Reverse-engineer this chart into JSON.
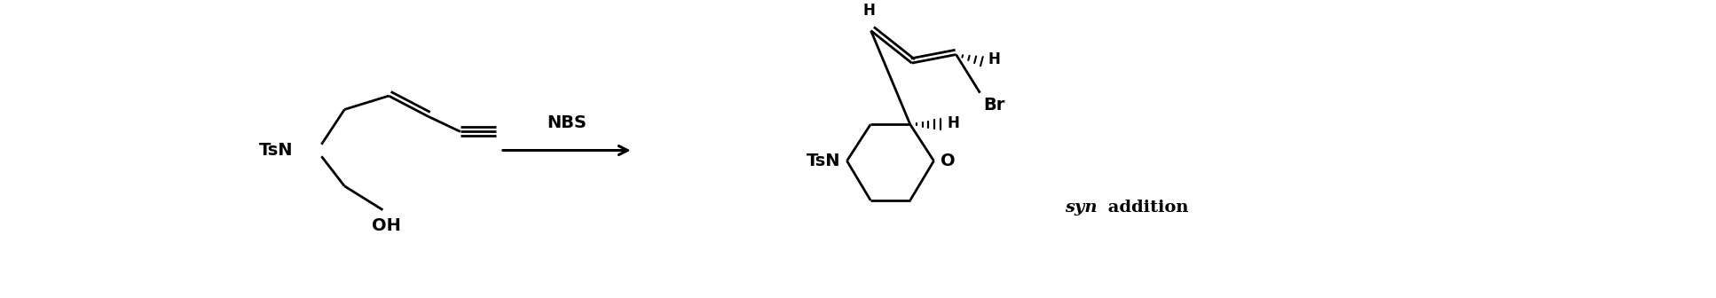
{
  "bg_color": "#ffffff",
  "line_color": "#000000",
  "lw": 2.0,
  "fig_width": 19.34,
  "fig_height": 3.36,
  "dpi": 100,
  "reagent": "NBS",
  "syn_text": "syn",
  "add_text": " addition",
  "TsN_L": "TsN",
  "OH": "OH",
  "TsN_R": "TsN",
  "O": "O",
  "H_allene_L": "H",
  "H_allene_R": "H",
  "H_ring": "H",
  "Br": "Br"
}
